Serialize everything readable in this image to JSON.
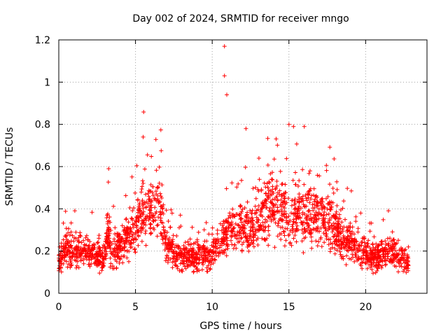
{
  "chart_data": {
    "type": "scatter",
    "title": "Day 002 of 2024, SRMTID for receiver mngo",
    "xlabel": "GPS time / hours",
    "ylabel": "SRMTID / TECUs",
    "xlim": [
      0,
      24
    ],
    "ylim": [
      0,
      1.2
    ],
    "x_ticks": [
      0,
      5,
      10,
      15,
      20
    ],
    "x_tick_labels": [
      "0",
      "5",
      "10",
      "15",
      "20"
    ],
    "y_ticks": [
      0,
      0.2,
      0.4,
      0.6,
      0.8,
      1.0,
      1.2
    ],
    "y_tick_labels": [
      "0",
      "0.2",
      "0.4",
      "0.6",
      "0.8",
      "1",
      "1.2"
    ],
    "grid": true,
    "marker": "+",
    "color": "#ff0000",
    "profile": {
      "description": "approximate typical SRMTID level vs hour (data units)",
      "x": [
        0,
        0.5,
        1,
        1.5,
        2,
        2.5,
        3,
        3.2,
        3.5,
        4,
        4.5,
        5,
        5.5,
        6,
        6.5,
        7,
        7.5,
        8,
        8.5,
        9,
        9.5,
        10,
        10.5,
        11,
        11.5,
        12,
        12.5,
        13,
        13.5,
        14,
        14.5,
        15,
        15.5,
        16,
        16.5,
        17,
        17.5,
        18,
        18.5,
        19,
        19.5,
        20,
        20.5,
        21,
        21.5,
        22,
        22.5,
        22.8
      ],
      "y": [
        0.15,
        0.22,
        0.2,
        0.2,
        0.2,
        0.17,
        0.16,
        0.3,
        0.18,
        0.22,
        0.26,
        0.3,
        0.4,
        0.38,
        0.45,
        0.24,
        0.2,
        0.17,
        0.17,
        0.18,
        0.18,
        0.17,
        0.24,
        0.3,
        0.3,
        0.32,
        0.3,
        0.35,
        0.4,
        0.42,
        0.4,
        0.35,
        0.38,
        0.36,
        0.35,
        0.35,
        0.34,
        0.32,
        0.25,
        0.25,
        0.2,
        0.18,
        0.17,
        0.18,
        0.2,
        0.17,
        0.16,
        0.14
      ]
    },
    "notable_points": [
      {
        "x": 5.5,
        "y": 0.74
      },
      {
        "x": 10.8,
        "y": 1.17
      },
      {
        "x": 10.8,
        "y": 1.03
      },
      {
        "x": 10.95,
        "y": 0.94
      },
      {
        "x": 15.0,
        "y": 0.8
      },
      {
        "x": 15.3,
        "y": 0.79
      },
      {
        "x": 16.0,
        "y": 0.79
      },
      {
        "x": 12.2,
        "y": 0.78
      },
      {
        "x": 3.25,
        "y": 0.59
      }
    ],
    "approx_point_count": 2400
  }
}
